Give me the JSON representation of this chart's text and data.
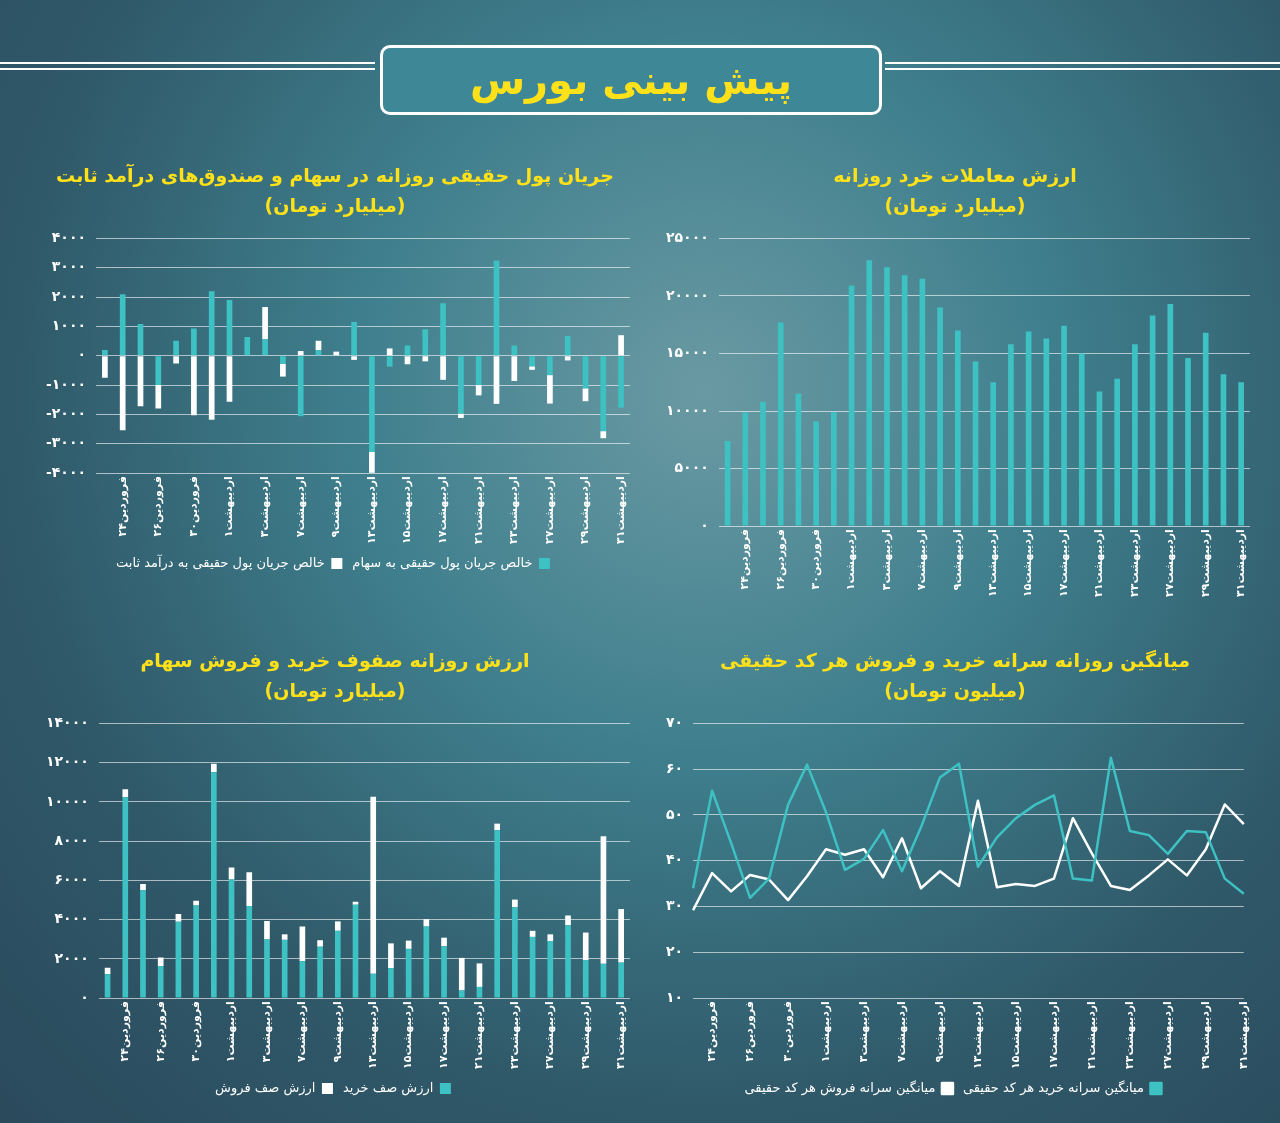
{
  "chart_data": [
    {
      "type": "other",
      "title": "پیش بینی بورس"
    },
    {
      "type": "bar",
      "title": "جریان پول حقیقی روزانه در سهام و صندوق‌های درآمد ثابت",
      "subtitle": "(میلیارد تومان)",
      "stacked": true,
      "grid": "y",
      "legend": "bottom",
      "categories": [
        null,
        "فروردین۲۴",
        null,
        "فروردین۲۶",
        null,
        "فروردین۳۰",
        null,
        "اردیبهشت۱",
        null,
        "اردیبهشت۳",
        null,
        "اردیبهشت۷",
        null,
        "اردیبهشت۹",
        null,
        "اردیبهشت۱۳",
        null,
        "اردیبهشت۱۵",
        null,
        "اردیبهشت۱۷",
        null,
        "اردیبهشت۲۱",
        null,
        "اردیبهشت۲۳",
        null,
        "اردیبهشت۲۷",
        null,
        "اردیبهشت۲۹",
        null,
        "اردیبهشت۳۱"
      ],
      "ylim": [
        -4000,
        4000
      ],
      "yticks": [
        {
          "value": -4000,
          "label": "-۴۰۰۰"
        },
        {
          "value": -3000,
          "label": "-۳۰۰۰"
        },
        {
          "value": -2000,
          "label": "-۲۰۰۰"
        },
        {
          "value": -1000,
          "label": "-۱۰۰۰"
        },
        {
          "value": 0,
          "label": "۰"
        },
        {
          "value": 1000,
          "label": "۱۰۰۰"
        },
        {
          "value": 2000,
          "label": "۲۰۰۰"
        },
        {
          "value": 3000,
          "label": "۳۰۰۰"
        },
        {
          "value": 4000,
          "label": "۴۰۰۰"
        }
      ],
      "series": [
        {
          "name": "خالص جریان پول حقیقی به سهام",
          "color": "#3ec1c3",
          "values": [
            200,
            2100,
            1080,
            -1000,
            510,
            930,
            2200,
            1900,
            640,
            560,
            -270,
            -2060,
            190,
            null,
            1150,
            -3280,
            -370,
            350,
            900,
            1790,
            -1970,
            -1000,
            3240,
            350,
            -360,
            -660,
            670,
            -1110,
            -2570,
            -1770
          ]
        },
        {
          "name": "خالص جریان پول حقیقی به درآمد ثابت",
          "color": "#ffffff",
          "values": [
            -750,
            -2540,
            -1720,
            -800,
            -260,
            -2030,
            -2180,
            -1570,
            null,
            1100,
            -440,
            160,
            320,
            140,
            -140,
            -710,
            250,
            -290,
            -190,
            -820,
            -150,
            -350,
            -1640,
            -860,
            -120,
            -970,
            -160,
            -440,
            -240,
            700
          ]
        }
      ]
    },
    {
      "type": "bar",
      "title": "ارزش معاملات خرد روزانه",
      "subtitle": "(میلیارد تومان)",
      "grid": "y",
      "categories": [
        null,
        "فروردین۲۴",
        null,
        "فروردین۲۶",
        null,
        "فروردین۳۰",
        null,
        "اردیبهشت۱",
        null,
        "اردیبهشت۳",
        null,
        "اردیبهشت۷",
        null,
        "اردیبهشت۹",
        null,
        "اردیبهشت۱۳",
        null,
        "اردیبهشت۱۵",
        null,
        "اردیبهشت۱۷",
        null,
        "اردیبهشت۲۱",
        null,
        "اردیبهشت۲۳",
        null,
        "اردیبهشت۲۷",
        null,
        "اردیبهشت۲۹",
        null,
        "اردیبهشت۳۱"
      ],
      "ylim": [
        0,
        25000
      ],
      "yticks": [
        {
          "value": 0,
          "label": "۰"
        },
        {
          "value": 5000,
          "label": "۵۰۰۰"
        },
        {
          "value": 10000,
          "label": "۱۰۰۰۰"
        },
        {
          "value": 15000,
          "label": "۱۵۰۰۰"
        },
        {
          "value": 20000,
          "label": "۲۰۰۰۰"
        },
        {
          "value": 25000,
          "label": "۲۵۰۰۰"
        }
      ],
      "series": [
        {
          "color": "#3ec1c3",
          "values": [
            7400,
            9900,
            10800,
            17700,
            11500,
            9100,
            9900,
            20900,
            23100,
            22500,
            21800,
            21500,
            19000,
            17000,
            14300,
            12500,
            15800,
            16900,
            16300,
            17400,
            15000,
            11700,
            12800,
            15800,
            18300,
            19300,
            14600,
            16800,
            13200,
            12500
          ]
        }
      ]
    },
    {
      "type": "bar",
      "title": "ارزش روزانه صفوف خرید و فروش سهام",
      "subtitle": "(میلیارد تومان)",
      "stacked": true,
      "grid": "y",
      "legend": "bottom",
      "categories": [
        null,
        "فروردین۲۴",
        null,
        "فروردین۲۶",
        null,
        "فروردین۳۰",
        null,
        "اردیبهشت۱",
        null,
        "اردیبهشت۳",
        null,
        "اردیبهشت۷",
        null,
        "اردیبهشت۹",
        null,
        "اردیبهشت۱۳",
        null,
        "اردیبهشت۱۵",
        null,
        "اردیبهشت۱۷",
        null,
        "اردیبهشت۲۱",
        null,
        "اردیبهشت۲۳",
        null,
        "اردیبهشت۲۷",
        null,
        "اردیبهشت۲۹",
        null,
        "اردیبهشت۳۱"
      ],
      "ylim": [
        0,
        14000
      ],
      "yticks": [
        {
          "value": 0,
          "label": "۰"
        },
        {
          "value": 2000,
          "label": "۲۰۰۰"
        },
        {
          "value": 4000,
          "label": "۴۰۰۰"
        },
        {
          "value": 6000,
          "label": "۶۰۰۰"
        },
        {
          "value": 8000,
          "label": "۸۰۰۰"
        },
        {
          "value": 10000,
          "label": "۱۰۰۰۰"
        },
        {
          "value": 12000,
          "label": "۱۲۰۰۰"
        },
        {
          "value": 14000,
          "label": "۱۴۰۰۰"
        }
      ],
      "series": [
        {
          "name": "ارزش صف خرید",
          "color": "#3ec1c3",
          "values": [
            1220,
            10240,
            5500,
            1640,
            3890,
            4720,
            11510,
            6050,
            4690,
            2990,
            2970,
            1880,
            2620,
            3430,
            4760,
            1240,
            1530,
            2510,
            3650,
            2640,
            390,
            570,
            8560,
            4630,
            3120,
            2900,
            3710,
            1940,
            1750,
            1810
          ]
        },
        {
          "name": "ارزش صف فروش",
          "color": "#ffffff",
          "values": [
            330,
            410,
            310,
            430,
            390,
            240,
            430,
            610,
            1730,
            940,
            280,
            1770,
            330,
            480,
            150,
            9020,
            1260,
            420,
            370,
            440,
            1660,
            1200,
            330,
            390,
            310,
            350,
            500,
            1400,
            6500,
            2730
          ]
        }
      ]
    },
    {
      "type": "line",
      "title": "میانگین روزانه سرانه خرید و فروش هر کد حقیقی",
      "subtitle": "(میلیون تومان)",
      "grid": "y",
      "legend": "bottom",
      "marker": "none",
      "categories": [
        null,
        "فروردین۲۴",
        null,
        "فروردین۲۶",
        null,
        "فروردین۳۰",
        null,
        "اردیبهشت۱",
        null,
        "اردیبهشت۳",
        null,
        "اردیبهشت۷",
        null,
        "اردیبهشت۹",
        null,
        "اردیبهشت۱۳",
        null,
        "اردیبهشت۱۵",
        null,
        "اردیبهشت۱۷",
        null,
        "اردیبهشت۲۱",
        null,
        "اردیبهشت۲۳",
        null,
        "اردیبهشت۲۷",
        null,
        "اردیبهشت۲۹",
        null,
        "اردیبهشت۳۱"
      ],
      "ylim": [
        10,
        70
      ],
      "yticks": [
        {
          "value": 10,
          "label": "۱۰"
        },
        {
          "value": 20,
          "label": "۲۰"
        },
        {
          "value": 30,
          "label": "۳۰"
        },
        {
          "value": 40,
          "label": "۴۰"
        },
        {
          "value": 50,
          "label": "۵۰"
        },
        {
          "value": 60,
          "label": "۶۰"
        },
        {
          "value": 70,
          "label": "۷۰"
        }
      ],
      "series": [
        {
          "name": "میانگین سرانه خرید هر کد حقیقی",
          "color": "#3ec1c3",
          "values": [
            34.0,
            55.3,
            43.9,
            31.9,
            36.1,
            52.2,
            61.0,
            50.6,
            38.0,
            40.4,
            46.7,
            37.7,
            47.3,
            58.2,
            61.2,
            38.7,
            45.1,
            49.3,
            52.2,
            54.3,
            36.1,
            35.7,
            62.5,
            46.5,
            45.6,
            41.5,
            46.5,
            46.2,
            36.1,
            32.8
          ]
        },
        {
          "name": "میانگین سرانه فروش هر کد حقیقی",
          "color": "#ffffff",
          "values": [
            29.2,
            37.3,
            33.3,
            36.9,
            35.9,
            31.4,
            36.6,
            42.5,
            41.3,
            42.5,
            36.4,
            44.9,
            34.0,
            37.7,
            34.5,
            53.1,
            34.2,
            34.9,
            34.5,
            36.1,
            49.3,
            41.6,
            34.5,
            33.6,
            36.8,
            40.3,
            36.8,
            42.5,
            52.3,
            48.0
          ]
        }
      ]
    }
  ]
}
